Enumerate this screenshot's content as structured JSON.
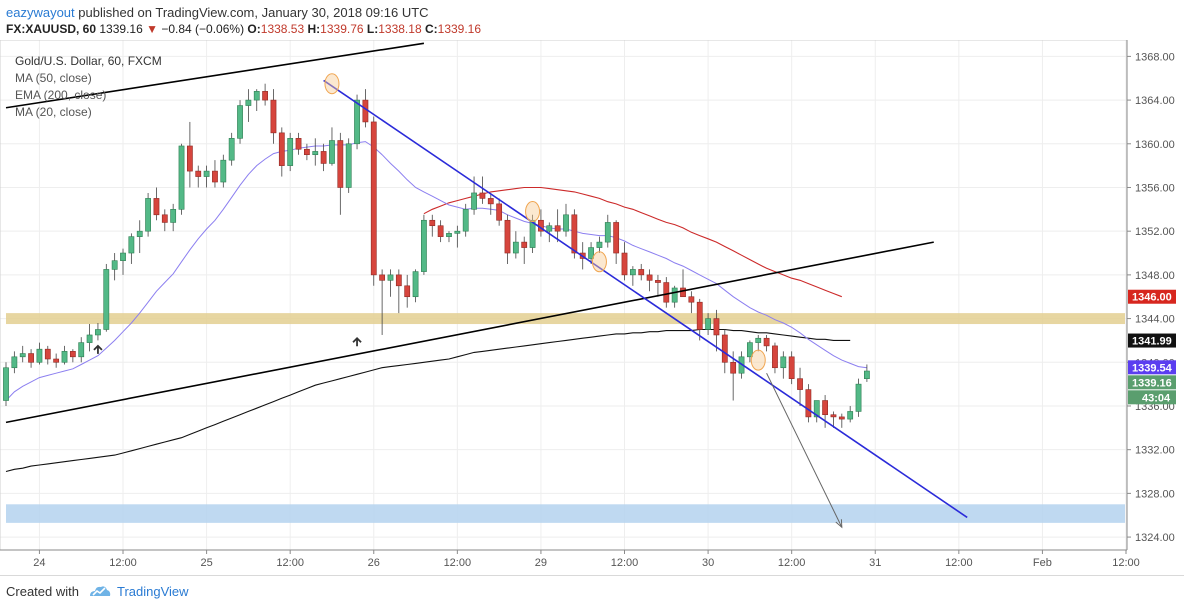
{
  "header": {
    "author": "eazywayout",
    "published_text": "published on TradingView.com, January 30, 2018 09:16 UTC",
    "symbol": "FX:XAUUSD, 60",
    "last": "1339.16",
    "change_arrow": "▼",
    "change": "−0.84 (−0.06%)",
    "o_label": "O:",
    "o_value": "1338.53",
    "h_label": "H:",
    "h_value": "1339.76",
    "l_label": "L:",
    "l_value": "1338.18",
    "c_label": "C:",
    "c_value": "1339.16"
  },
  "legend": {
    "title": "Gold/U.S. Dollar, 60, FXCM",
    "items": [
      "MA (50, close)",
      "EMA (200, close)",
      "MA (20, close)"
    ]
  },
  "footer": {
    "created_with": "Created with",
    "brand": "TradingView"
  },
  "chart_data": {
    "type": "candlestick",
    "title": "Gold/U.S. Dollar, 60, FXCM",
    "ylim": [
      1323,
      1369.5
    ],
    "xlim": [
      0,
      134
    ],
    "y_ticks": [
      {
        "v": 1324,
        "label": "1324.00"
      },
      {
        "v": 1328,
        "label": "1328.00"
      },
      {
        "v": 1332,
        "label": "1332.00"
      },
      {
        "v": 1336,
        "label": "1336.00"
      },
      {
        "v": 1340,
        "label": "1340.00"
      },
      {
        "v": 1344,
        "label": "1344.00"
      },
      {
        "v": 1348,
        "label": "1348.00"
      },
      {
        "v": 1352,
        "label": "1352.00"
      },
      {
        "v": 1356,
        "label": "1356.00"
      },
      {
        "v": 1360,
        "label": "1360.00"
      },
      {
        "v": 1364,
        "label": "1364.00"
      },
      {
        "v": 1368,
        "label": "1368.00"
      }
    ],
    "x_ticks": [
      {
        "i": 4,
        "label": "24"
      },
      {
        "i": 14,
        "label": "12:00"
      },
      {
        "i": 24,
        "label": "25"
      },
      {
        "i": 34,
        "label": "12:00"
      },
      {
        "i": 44,
        "label": "26"
      },
      {
        "i": 54,
        "label": "12:00"
      },
      {
        "i": 64,
        "label": "29"
      },
      {
        "i": 74,
        "label": "12:00"
      },
      {
        "i": 84,
        "label": "30"
      },
      {
        "i": 94,
        "label": "12:00"
      },
      {
        "i": 104,
        "label": "31"
      },
      {
        "i": 114,
        "label": "12:00"
      },
      {
        "i": 124,
        "label": "Feb"
      },
      {
        "i": 134,
        "label": "12:00"
      }
    ],
    "candles": [
      [
        1336.5,
        1340.0,
        1336.0,
        1339.5
      ],
      [
        1339.5,
        1341.0,
        1339.0,
        1340.5
      ],
      [
        1340.5,
        1341.5,
        1340.0,
        1340.8
      ],
      [
        1340.8,
        1341.2,
        1339.5,
        1340.0
      ],
      [
        1340.0,
        1341.8,
        1339.8,
        1341.2
      ],
      [
        1341.2,
        1341.5,
        1339.8,
        1340.3
      ],
      [
        1340.3,
        1340.8,
        1339.5,
        1340.0
      ],
      [
        1340.0,
        1341.5,
        1339.8,
        1341.0
      ],
      [
        1341.0,
        1341.2,
        1340.0,
        1340.5
      ],
      [
        1340.5,
        1342.3,
        1340.0,
        1341.8
      ],
      [
        1341.8,
        1343.5,
        1341.0,
        1342.5
      ],
      [
        1342.5,
        1343.6,
        1342.0,
        1343.0
      ],
      [
        1343.0,
        1349.0,
        1342.8,
        1348.5
      ],
      [
        1348.5,
        1350.0,
        1347.5,
        1349.3
      ],
      [
        1349.3,
        1350.4,
        1348.0,
        1350.0
      ],
      [
        1350.0,
        1351.8,
        1349.0,
        1351.5
      ],
      [
        1351.5,
        1353.0,
        1350.0,
        1352.0
      ],
      [
        1352.0,
        1355.5,
        1351.5,
        1355.0
      ],
      [
        1355.0,
        1356.0,
        1353.0,
        1353.5
      ],
      [
        1353.5,
        1354.0,
        1352.0,
        1352.8
      ],
      [
        1352.8,
        1354.5,
        1352.0,
        1354.0
      ],
      [
        1354.0,
        1360.0,
        1353.5,
        1359.8
      ],
      [
        1359.8,
        1362.0,
        1356.0,
        1357.5
      ],
      [
        1357.5,
        1358.0,
        1356.0,
        1357.0
      ],
      [
        1357.0,
        1358.0,
        1356.0,
        1357.5
      ],
      [
        1357.5,
        1358.5,
        1356.0,
        1356.5
      ],
      [
        1356.5,
        1359.0,
        1356.0,
        1358.5
      ],
      [
        1358.5,
        1361.0,
        1358.0,
        1360.5
      ],
      [
        1360.5,
        1364.0,
        1360.0,
        1363.5
      ],
      [
        1363.5,
        1365.0,
        1362.0,
        1364.0
      ],
      [
        1364.0,
        1365.0,
        1363.0,
        1364.8
      ],
      [
        1364.8,
        1365.5,
        1363.5,
        1364.0
      ],
      [
        1364.0,
        1365.0,
        1360.0,
        1361.0
      ],
      [
        1361.0,
        1361.5,
        1357.0,
        1358.0
      ],
      [
        1358.0,
        1361.0,
        1357.5,
        1360.5
      ],
      [
        1360.5,
        1361.0,
        1359.0,
        1359.5
      ],
      [
        1359.5,
        1360.0,
        1358.5,
        1359.0
      ],
      [
        1359.0,
        1360.5,
        1358.0,
        1359.3
      ],
      [
        1359.3,
        1360.0,
        1357.5,
        1358.2
      ],
      [
        1358.2,
        1361.5,
        1358.0,
        1360.3
      ],
      [
        1360.3,
        1361.0,
        1353.5,
        1356.0
      ],
      [
        1356.0,
        1360.5,
        1355.5,
        1360.0
      ],
      [
        1360.0,
        1364.5,
        1359.5,
        1364.0
      ],
      [
        1364.0,
        1365.0,
        1361.5,
        1362.0
      ],
      [
        1362.0,
        1362.5,
        1347.0,
        1348.0
      ],
      [
        1348.0,
        1348.5,
        1342.5,
        1347.5
      ],
      [
        1347.5,
        1348.5,
        1346.0,
        1348.0
      ],
      [
        1348.0,
        1348.5,
        1344.5,
        1347.0
      ],
      [
        1347.0,
        1348.0,
        1345.0,
        1346.0
      ],
      [
        1346.0,
        1348.5,
        1345.5,
        1348.3
      ],
      [
        1348.3,
        1353.5,
        1348.0,
        1353.0
      ],
      [
        1353.0,
        1353.5,
        1351.5,
        1352.5
      ],
      [
        1352.5,
        1353.0,
        1351.0,
        1351.5
      ],
      [
        1351.5,
        1352.0,
        1351.0,
        1351.8
      ],
      [
        1351.8,
        1352.5,
        1350.5,
        1352.0
      ],
      [
        1352.0,
        1354.5,
        1351.5,
        1354.0
      ],
      [
        1354.0,
        1357.0,
        1353.5,
        1355.5
      ],
      [
        1355.5,
        1357.0,
        1354.5,
        1355.0
      ],
      [
        1355.0,
        1355.5,
        1353.5,
        1354.5
      ],
      [
        1354.5,
        1355.0,
        1352.5,
        1353.0
      ],
      [
        1353.0,
        1353.5,
        1349.0,
        1350.0
      ],
      [
        1350.0,
        1352.0,
        1349.5,
        1351.0
      ],
      [
        1351.0,
        1351.5,
        1349.0,
        1350.5
      ],
      [
        1350.5,
        1353.5,
        1350.0,
        1353.0
      ],
      [
        1353.0,
        1354.0,
        1351.5,
        1352.0
      ],
      [
        1352.0,
        1352.8,
        1351.0,
        1352.5
      ],
      [
        1352.5,
        1354.0,
        1351.0,
        1352.0
      ],
      [
        1352.0,
        1354.5,
        1351.5,
        1353.5
      ],
      [
        1353.5,
        1354.0,
        1349.5,
        1350.0
      ],
      [
        1350.0,
        1351.0,
        1348.5,
        1349.5
      ],
      [
        1349.5,
        1351.0,
        1349.0,
        1350.5
      ],
      [
        1350.5,
        1351.5,
        1350.0,
        1351.0
      ],
      [
        1351.0,
        1353.5,
        1350.5,
        1352.8
      ],
      [
        1352.8,
        1353.0,
        1349.0,
        1350.0
      ],
      [
        1350.0,
        1351.0,
        1347.5,
        1348.0
      ],
      [
        1348.0,
        1348.8,
        1347.0,
        1348.5
      ],
      [
        1348.5,
        1349.0,
        1347.5,
        1348.0
      ],
      [
        1348.0,
        1348.5,
        1346.5,
        1347.5
      ],
      [
        1347.5,
        1348.0,
        1346.0,
        1347.3
      ],
      [
        1347.3,
        1347.8,
        1345.0,
        1345.5
      ],
      [
        1345.5,
        1347.0,
        1345.0,
        1346.8
      ],
      [
        1346.8,
        1348.5,
        1346.0,
        1346.0
      ],
      [
        1346.0,
        1346.5,
        1344.5,
        1345.5
      ],
      [
        1345.5,
        1345.8,
        1342.0,
        1343.0
      ],
      [
        1343.0,
        1344.5,
        1342.5,
        1344.0
      ],
      [
        1344.0,
        1344.8,
        1341.0,
        1342.5
      ],
      [
        1342.5,
        1343.0,
        1339.0,
        1340.0
      ],
      [
        1340.0,
        1341.0,
        1336.5,
        1339.0
      ],
      [
        1339.0,
        1341.0,
        1338.5,
        1340.5
      ],
      [
        1340.5,
        1342.0,
        1340.0,
        1341.8
      ],
      [
        1341.8,
        1342.5,
        1341.0,
        1342.2
      ],
      [
        1342.2,
        1342.5,
        1341.0,
        1341.5
      ],
      [
        1341.5,
        1341.8,
        1339.0,
        1339.5
      ],
      [
        1339.5,
        1341.0,
        1338.5,
        1340.5
      ],
      [
        1340.5,
        1341.0,
        1338.0,
        1338.5
      ],
      [
        1338.5,
        1339.5,
        1336.0,
        1337.5
      ],
      [
        1337.5,
        1338.0,
        1334.5,
        1335.0
      ],
      [
        1335.0,
        1336.5,
        1334.5,
        1336.5
      ],
      [
        1336.5,
        1337.0,
        1334.0,
        1335.2
      ],
      [
        1335.2,
        1335.5,
        1334.0,
        1335.0
      ],
      [
        1335.0,
        1335.3,
        1334.0,
        1334.8
      ],
      [
        1334.8,
        1336.0,
        1334.5,
        1335.5
      ],
      [
        1335.5,
        1338.5,
        1335.0,
        1338.0
      ],
      [
        1338.5,
        1339.8,
        1338.2,
        1339.2
      ]
    ],
    "ma20": [
      1336.5,
      1337.3,
      1337.8,
      1338.2,
      1338.6,
      1338.8,
      1339.0,
      1339.2,
      1339.4,
      1339.8,
      1340.2,
      1340.6,
      1341.3,
      1342.0,
      1342.8,
      1343.6,
      1344.5,
      1345.5,
      1346.5,
      1347.3,
      1348.1,
      1349.2,
      1350.3,
      1351.3,
      1352.2,
      1353.0,
      1354.0,
      1355.1,
      1356.2,
      1357.2,
      1358.0,
      1358.6,
      1359.1,
      1359.3,
      1359.4,
      1359.6,
      1359.7,
      1359.8,
      1359.8,
      1359.9,
      1359.9,
      1359.9,
      1360.1,
      1360.2,
      1359.7,
      1359.0,
      1358.2,
      1357.5,
      1356.7,
      1356.0,
      1355.6,
      1355.2,
      1354.8,
      1354.4,
      1354.2,
      1354.0,
      1354.1,
      1354.1,
      1354.0,
      1353.9,
      1353.5,
      1353.2,
      1352.9,
      1352.7,
      1352.5,
      1352.3,
      1352.2,
      1352.2,
      1352.0,
      1351.8,
      1351.7,
      1351.6,
      1351.6,
      1351.4,
      1351.1,
      1350.7,
      1350.4,
      1350.1,
      1349.8,
      1349.5,
      1349.1,
      1348.8,
      1348.4,
      1348.0,
      1347.6,
      1347.2,
      1346.6,
      1346.0,
      1345.5,
      1345.0,
      1344.6,
      1344.3,
      1343.9,
      1343.6,
      1343.2,
      1342.7,
      1342.1,
      1341.6,
      1341.1,
      1340.6,
      1340.2,
      1339.9,
      1339.6,
      1339.5
    ],
    "ma50": [
      null,
      null,
      null,
      null,
      null,
      null,
      null,
      null,
      null,
      null,
      null,
      null,
      null,
      null,
      null,
      null,
      null,
      null,
      null,
      null,
      null,
      null,
      null,
      null,
      null,
      null,
      null,
      null,
      null,
      null,
      null,
      null,
      null,
      null,
      null,
      null,
      null,
      null,
      null,
      null,
      null,
      null,
      null,
      null,
      null,
      null,
      null,
      null,
      null,
      null,
      1353.6,
      1354.0,
      1354.3,
      1354.6,
      1354.8,
      1355.0,
      1355.2,
      1355.4,
      1355.6,
      1355.7,
      1355.8,
      1355.9,
      1356.0,
      1356.0,
      1356.0,
      1355.9,
      1355.8,
      1355.7,
      1355.6,
      1355.4,
      1355.2,
      1355.0,
      1354.7,
      1354.5,
      1354.2,
      1354.0,
      1353.7,
      1353.4,
      1353.1,
      1352.8,
      1352.6,
      1352.3,
      1351.9,
      1351.6,
      1351.3,
      1351.0,
      1350.6,
      1350.2,
      1349.8,
      1349.4,
      1349.0,
      1348.6,
      1348.3,
      1348.0,
      1347.7,
      1347.5,
      1347.2,
      1346.9,
      1346.6,
      1346.3,
      1346.0,
      null,
      null,
      null
    ],
    "ema200": [
      1330.0,
      1330.2,
      1330.3,
      1330.5,
      1330.6,
      1330.7,
      1330.8,
      1330.9,
      1331.0,
      1331.1,
      1331.2,
      1331.3,
      1331.4,
      1331.5,
      1331.7,
      1331.9,
      1332.1,
      1332.3,
      1332.5,
      1332.7,
      1332.9,
      1333.1,
      1333.4,
      1333.7,
      1334.0,
      1334.3,
      1334.6,
      1334.9,
      1335.2,
      1335.5,
      1335.8,
      1336.1,
      1336.4,
      1336.7,
      1337.0,
      1337.3,
      1337.6,
      1337.9,
      1338.1,
      1338.3,
      1338.5,
      1338.7,
      1338.9,
      1339.1,
      1339.3,
      1339.5,
      1339.6,
      1339.7,
      1339.8,
      1339.9,
      1340.0,
      1340.1,
      1340.2,
      1340.3,
      1340.5,
      1340.7,
      1340.9,
      1341.0,
      1341.1,
      1341.2,
      1341.3,
      1341.4,
      1341.5,
      1341.6,
      1341.7,
      1341.8,
      1341.9,
      1342.0,
      1342.1,
      1342.2,
      1342.3,
      1342.4,
      1342.5,
      1342.6,
      1342.6,
      1342.7,
      1342.7,
      1342.8,
      1342.8,
      1342.9,
      1342.9,
      1342.9,
      1342.9,
      1343.0,
      1343.0,
      1343.0,
      1343.0,
      1342.9,
      1342.9,
      1342.8,
      1342.7,
      1342.7,
      1342.6,
      1342.5,
      1342.4,
      1342.3,
      1342.2,
      1342.1,
      1342.1,
      1342.0,
      1342.0,
      1342.0,
      null,
      null
    ],
    "zones": [
      {
        "name": "resistance",
        "y1": 1343.5,
        "y2": 1344.5,
        "color": "#e3cf91"
      },
      {
        "name": "target",
        "y1": 1325.3,
        "y2": 1327.0,
        "color": "#b4d2ee"
      }
    ],
    "trendlines": [
      {
        "name": "upper-channel",
        "i1": 0,
        "v1": 1363.3,
        "i2": 50,
        "v2": 1369.2,
        "color": "#000000"
      },
      {
        "name": "lower-channel",
        "i1": 0,
        "v1": 1334.5,
        "i2": 111,
        "v2": 1351.0,
        "color": "#000000"
      },
      {
        "name": "downtrend",
        "i1": 38,
        "v1": 1365.8,
        "i2": 115,
        "v2": 1325.8,
        "color": "#2b2bd9"
      }
    ],
    "projection": {
      "i1": 91,
      "v1": 1339.0,
      "i2": 100,
      "v2": 1324.9,
      "color": "#666666"
    },
    "touch_markers": [
      {
        "i": 39,
        "v": 1365.5
      },
      {
        "i": 63,
        "v": 1353.8
      },
      {
        "i": 71,
        "v": 1349.2
      },
      {
        "i": 90,
        "v": 1340.2
      }
    ],
    "up_arrows": [
      {
        "i": 11,
        "v": 1341.5
      },
      {
        "i": 42,
        "v": 1342.2
      }
    ],
    "price_badges": [
      {
        "v": 1346.0,
        "label": "1346.00",
        "color": "#d7261e"
      },
      {
        "v": 1341.99,
        "label": "1341.99",
        "color": "#111111"
      },
      {
        "v": 1339.54,
        "label": "1339.54",
        "color": "#5b3ef0"
      },
      {
        "v": 1339.16,
        "label": "1339.16",
        "color": "#5a9e6e"
      }
    ],
    "countdown": "43:04",
    "colors": {
      "up": "#53b987",
      "down": "#d6453d",
      "ma20": "#8c7ff0",
      "ma50": "#cc2a2a",
      "ema200": "#111111"
    }
  }
}
